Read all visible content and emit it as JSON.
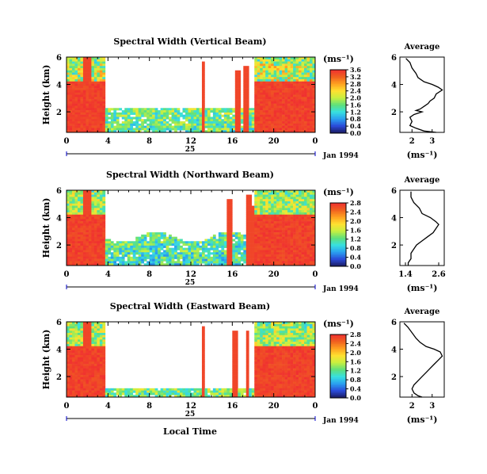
{
  "colorscale": {
    "name": "rainbow",
    "stops": [
      "#1a1a5e",
      "#2a4ad8",
      "#2aa0f0",
      "#38e0e0",
      "#5fe07a",
      "#c8f040",
      "#ffe030",
      "#ffa020",
      "#f06020",
      "#f03030"
    ]
  },
  "chart_data": [
    {
      "type": "heatmap",
      "title": "Spectral Width (Vertical Beam)",
      "ylabel": "Height (km)",
      "y_ticks": [
        "6",
        "4",
        "2"
      ],
      "x_ticks": [
        "0",
        "4",
        "8",
        "12",
        "16",
        "20",
        "0"
      ],
      "xlim": [
        0,
        24
      ],
      "ylim": [
        0.5,
        6
      ],
      "date_label": "25",
      "month_label": "Jan 1994",
      "colorbar": {
        "unit": "(ms⁻¹)",
        "ticks": [
          "3.6",
          "3.2",
          "2.8",
          "2.4",
          "2.0",
          "1.6",
          "1.2",
          "0.8",
          "0.4",
          "0.0"
        ],
        "max": 3.6
      },
      "profile": {
        "title": "Average",
        "xlabel": "(ms⁻¹)",
        "x_ticks": [
          "2",
          "3"
        ],
        "y_ticks": [
          "6",
          "4",
          "2"
        ],
        "xlim": [
          1.4,
          3.6
        ],
        "ylim": [
          0.5,
          6
        ],
        "points": [
          [
            1.7,
            5.9
          ],
          [
            1.9,
            5.6
          ],
          [
            2.0,
            5.2
          ],
          [
            2.2,
            4.8
          ],
          [
            2.3,
            4.5
          ],
          [
            2.6,
            4.2
          ],
          [
            3.0,
            4.0
          ],
          [
            3.3,
            3.8
          ],
          [
            3.5,
            3.6
          ],
          [
            3.2,
            3.3
          ],
          [
            3.1,
            3.0
          ],
          [
            2.9,
            2.8
          ],
          [
            2.8,
            2.6
          ],
          [
            2.6,
            2.4
          ],
          [
            2.4,
            2.2
          ],
          [
            2.2,
            2.1
          ],
          [
            2.5,
            2.0
          ],
          [
            2.1,
            1.8
          ],
          [
            1.9,
            1.6
          ],
          [
            2.0,
            1.3
          ],
          [
            1.9,
            1.0
          ],
          [
            2.2,
            0.8
          ],
          [
            2.6,
            0.6
          ],
          [
            3.2,
            0.5
          ]
        ]
      }
    },
    {
      "type": "heatmap",
      "title": "Spectral Width (Northward Beam)",
      "ylabel": "Height (km)",
      "y_ticks": [
        "6",
        "4",
        "2"
      ],
      "x_ticks": [
        "0",
        "4",
        "8",
        "12",
        "16",
        "20",
        "0"
      ],
      "xlim": [
        0,
        24
      ],
      "ylim": [
        0.5,
        6
      ],
      "date_label": "25",
      "month_label": "Jan 1994",
      "colorbar": {
        "unit": "(ms⁻¹)",
        "ticks": [
          "2.8",
          "2.4",
          "2.0",
          "1.6",
          "1.2",
          "0.8",
          "0.4",
          "0.0"
        ],
        "max": 2.8
      },
      "profile": {
        "title": "Average",
        "xlabel": "(ms⁻¹)",
        "x_ticks": [
          "1.4",
          "2.6"
        ],
        "y_ticks": [
          "6",
          "4",
          "2"
        ],
        "xlim": [
          1.2,
          2.8
        ],
        "ylim": [
          0.5,
          6
        ],
        "points": [
          [
            1.6,
            5.9
          ],
          [
            1.6,
            5.5
          ],
          [
            1.7,
            5.1
          ],
          [
            1.9,
            4.7
          ],
          [
            2.0,
            4.3
          ],
          [
            2.3,
            4.0
          ],
          [
            2.5,
            3.7
          ],
          [
            2.6,
            3.5
          ],
          [
            2.5,
            3.2
          ],
          [
            2.4,
            2.9
          ],
          [
            2.2,
            2.6
          ],
          [
            2.0,
            2.3
          ],
          [
            1.8,
            2.0
          ],
          [
            1.7,
            1.7
          ],
          [
            1.6,
            1.4
          ],
          [
            1.6,
            1.0
          ],
          [
            1.5,
            0.7
          ],
          [
            1.5,
            0.5
          ]
        ]
      }
    },
    {
      "type": "heatmap",
      "title": "Spectral Width (Eastward Beam)",
      "ylabel": "Height (km)",
      "y_ticks": [
        "6",
        "4",
        "2"
      ],
      "x_ticks": [
        "0",
        "4",
        "8",
        "12",
        "16",
        "20",
        "0"
      ],
      "xlim": [
        0,
        24
      ],
      "ylim": [
        0.5,
        6
      ],
      "date_label": "25",
      "month_label": "Jan 1994",
      "xlabel": "Local Time",
      "colorbar": {
        "unit": "(ms⁻¹)",
        "ticks": [
          "2.8",
          "2.4",
          "2.0",
          "1.6",
          "1.2",
          "0.8",
          "0.4",
          "0.0"
        ],
        "max": 2.8
      },
      "profile": {
        "title": "Average",
        "xlabel": "(ms⁻¹)",
        "x_ticks": [
          "2",
          "3"
        ],
        "y_ticks": [
          "6",
          "4",
          "2"
        ],
        "xlim": [
          1.4,
          3.6
        ],
        "ylim": [
          0.5,
          6
        ],
        "points": [
          [
            1.6,
            5.9
          ],
          [
            1.8,
            5.6
          ],
          [
            2.0,
            5.2
          ],
          [
            2.2,
            4.8
          ],
          [
            2.4,
            4.5
          ],
          [
            2.7,
            4.2
          ],
          [
            3.1,
            4.0
          ],
          [
            3.4,
            3.8
          ],
          [
            3.5,
            3.5
          ],
          [
            3.3,
            3.2
          ],
          [
            3.1,
            2.9
          ],
          [
            2.9,
            2.6
          ],
          [
            2.7,
            2.3
          ],
          [
            2.5,
            2.0
          ],
          [
            2.3,
            1.7
          ],
          [
            2.1,
            1.4
          ],
          [
            2.0,
            1.1
          ],
          [
            2.1,
            0.8
          ],
          [
            2.3,
            0.6
          ],
          [
            2.5,
            0.5
          ]
        ]
      }
    }
  ]
}
